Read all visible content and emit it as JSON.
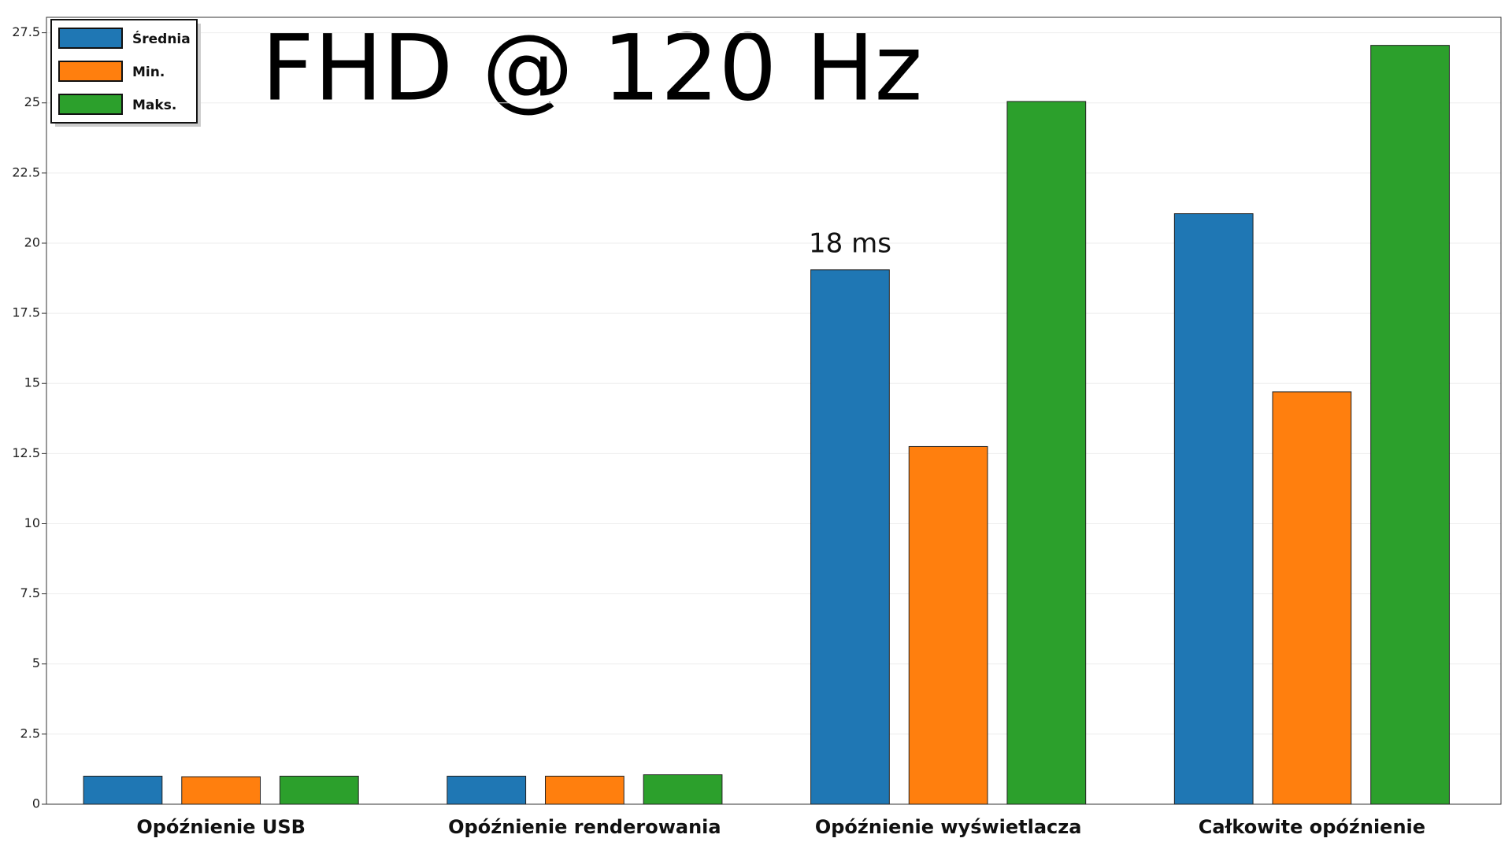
{
  "chart_data": {
    "type": "bar",
    "title": "FHD @ 120 Hz",
    "annotation": "18 ms",
    "categories": [
      "Opóźnienie USB",
      "Opóźnienie renderowania",
      "Opóźnienie wyświetlacza",
      "Całkowite opóźnienie"
    ],
    "series": [
      {
        "name": "Średnia",
        "color": "#1f77b4",
        "values": [
          1.0,
          1.0,
          19.05,
          21.05
        ]
      },
      {
        "name": "Min.",
        "color": "#ff7f0e",
        "values": [
          0.98,
          1.0,
          12.75,
          14.7
        ]
      },
      {
        "name": "Maks.",
        "color": "#2ca02c",
        "values": [
          1.0,
          1.05,
          25.05,
          27.05
        ]
      }
    ],
    "ylim": [
      0,
      28.05
    ],
    "yticks": [
      0,
      2.5,
      5,
      7.5,
      10,
      12.5,
      15,
      17.5,
      20,
      22.5,
      25,
      27.5
    ],
    "grid": true,
    "legend": "upper left"
  }
}
